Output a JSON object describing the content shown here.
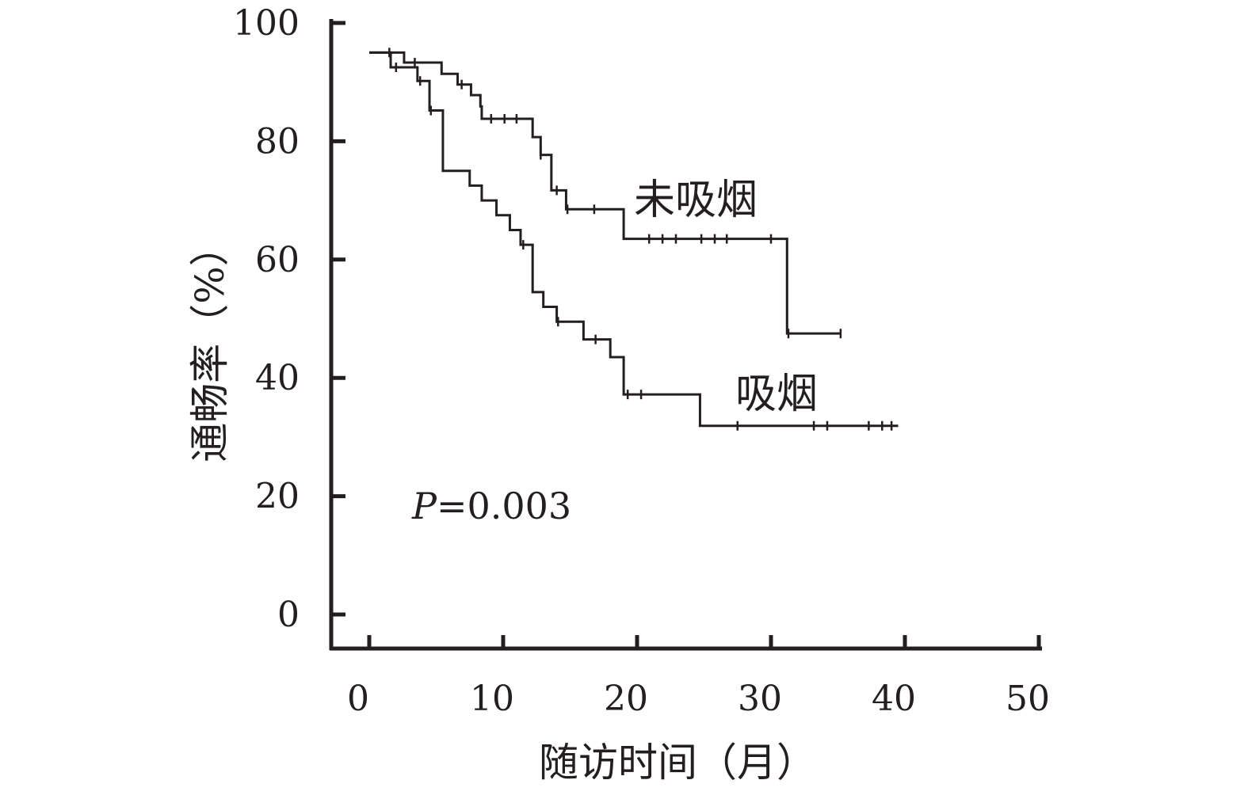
{
  "chart_data": {
    "type": "line",
    "step": true,
    "title": "",
    "xlabel": "随访时间（月）",
    "ylabel": "通畅率（%）",
    "xlim": [
      0,
      50
    ],
    "ylim": [
      0,
      100
    ],
    "xticks": [
      0,
      10,
      20,
      30,
      40,
      50
    ],
    "yticks": [
      0,
      20,
      40,
      60,
      80,
      100
    ],
    "grid": false,
    "legend": "none",
    "colors": {
      "axis": "#231f20",
      "line": "#231f20"
    },
    "annotation": {
      "italic": "P",
      "rest": "=0.003"
    },
    "series": [
      {
        "name": "未吸烟",
        "steps": [
          [
            0,
            95
          ],
          [
            2.6,
            93.3
          ],
          [
            5.4,
            91.4
          ],
          [
            6.6,
            89.6
          ],
          [
            7.6,
            87.8
          ],
          [
            8.3,
            85.9
          ],
          [
            8.4,
            83.8
          ],
          [
            12.2,
            80.7
          ],
          [
            12.8,
            77.7
          ],
          [
            13.6,
            71.7
          ],
          [
            14.7,
            68.5
          ],
          [
            19.0,
            63.5
          ],
          [
            31.2,
            47.5
          ],
          [
            35.2,
            47.5
          ]
        ],
        "censored": [
          [
            1.5,
            95
          ],
          [
            3.4,
            93.3
          ],
          [
            6.9,
            89.6
          ],
          [
            9.1,
            83.8
          ],
          [
            10.1,
            83.8
          ],
          [
            11.0,
            83.8
          ],
          [
            12.8,
            77.7
          ],
          [
            14.0,
            71.7
          ],
          [
            14.8,
            68.5
          ],
          [
            16.8,
            68.5
          ],
          [
            20.9,
            63.5
          ],
          [
            21.9,
            63.5
          ],
          [
            22.9,
            63.5
          ],
          [
            24.8,
            63.5
          ],
          [
            25.8,
            63.5
          ],
          [
            26.7,
            63.5
          ],
          [
            30.0,
            63.5
          ],
          [
            31.3,
            47.5
          ],
          [
            35.2,
            47.5
          ]
        ]
      },
      {
        "name": "吸烟",
        "steps": [
          [
            0,
            95
          ],
          [
            1.6,
            92.5
          ],
          [
            3.6,
            90.2
          ],
          [
            4.5,
            85.2
          ],
          [
            5.5,
            75.0
          ],
          [
            7.5,
            72.5
          ],
          [
            8.4,
            70.0
          ],
          [
            9.5,
            67.5
          ],
          [
            10.5,
            65.0
          ],
          [
            11.3,
            62.5
          ],
          [
            12.2,
            54.5
          ],
          [
            13.0,
            52.0
          ],
          [
            14.0,
            49.5
          ],
          [
            16.0,
            46.5
          ],
          [
            18.0,
            43.5
          ],
          [
            19.0,
            37.2
          ],
          [
            24.7,
            31.9
          ],
          [
            39.5,
            31.9
          ]
        ],
        "censored": [
          [
            2.0,
            92.5
          ],
          [
            3.8,
            90.2
          ],
          [
            4.6,
            85.2
          ],
          [
            11.5,
            62.5
          ],
          [
            14.1,
            49.5
          ],
          [
            16.9,
            46.5
          ],
          [
            19.3,
            37.2
          ],
          [
            20.3,
            37.2
          ],
          [
            27.5,
            31.9
          ],
          [
            33.2,
            31.9
          ],
          [
            34.2,
            31.9
          ],
          [
            37.3,
            31.9
          ],
          [
            38.3,
            31.9
          ],
          [
            39.0,
            31.9
          ]
        ]
      }
    ]
  }
}
